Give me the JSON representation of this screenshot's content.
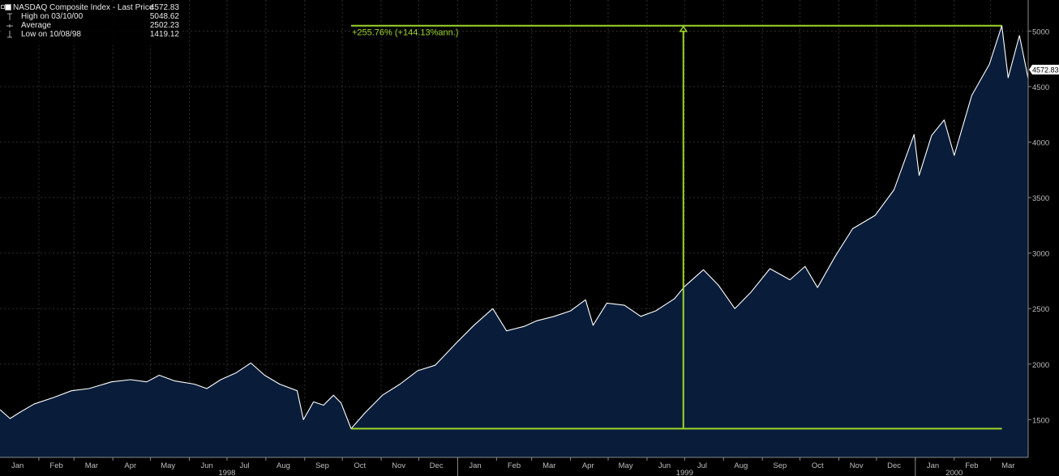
{
  "legend": {
    "series_label": "NASDAQ Composite Index - Last Price",
    "series_value": "4572.83",
    "high_label": "High on 03/10/00",
    "high_value": "5048.62",
    "average_label": "Average",
    "average_value": "2502.23",
    "low_label": "Low on 10/08/98",
    "low_value": "1419.12"
  },
  "annotation": {
    "text": "+255.76% (+144.13%ann.)"
  },
  "last_price_tag": "4572.83",
  "colors": {
    "background": "#000000",
    "area_fill": "#091d3a",
    "line": "#ffffff",
    "annotation": "#9dd62a",
    "grid": "#2e2e2e",
    "axis_text": "#bdbdbd"
  },
  "chart_data": {
    "type": "area",
    "title": "",
    "xlabel": "",
    "ylabel": "",
    "y_axis_side": "right",
    "ylim": [
      1160,
      5280
    ],
    "yticks": [
      1500,
      2000,
      2500,
      3000,
      3500,
      4000,
      4500,
      5000
    ],
    "grid": true,
    "x_start": "1998-01-01",
    "x_end": "2000-03-31",
    "month_ticks": [
      "Jan",
      "Feb",
      "Mar",
      "Apr",
      "May",
      "Jun",
      "Jul",
      "Aug",
      "Sep",
      "Oct",
      "Nov",
      "Dec",
      "Jan",
      "Feb",
      "Mar",
      "Apr",
      "May",
      "Jun",
      "Jul",
      "Aug",
      "Sep",
      "Oct",
      "Nov",
      "Dec",
      "Jan",
      "Feb",
      "Mar"
    ],
    "year_labels": [
      {
        "label": "1998",
        "month_index": 6
      },
      {
        "label": "1999",
        "month_index": 18
      },
      {
        "label": "2000",
        "month_index": 25
      }
    ],
    "series": [
      {
        "name": "NASDAQ Composite Index - Last Price",
        "points": [
          [
            "1998-01-01",
            1590
          ],
          [
            "1998-01-09",
            1510
          ],
          [
            "1998-01-16",
            1560
          ],
          [
            "1998-01-28",
            1640
          ],
          [
            "1998-02-13",
            1700
          ],
          [
            "1998-02-27",
            1760
          ],
          [
            "1998-03-13",
            1780
          ],
          [
            "1998-03-31",
            1840
          ],
          [
            "1998-04-15",
            1860
          ],
          [
            "1998-04-28",
            1840
          ],
          [
            "1998-05-08",
            1900
          ],
          [
            "1998-05-20",
            1850
          ],
          [
            "1998-06-05",
            1820
          ],
          [
            "1998-06-15",
            1780
          ],
          [
            "1998-06-26",
            1860
          ],
          [
            "1998-07-08",
            1920
          ],
          [
            "1998-07-20",
            2010
          ],
          [
            "1998-07-31",
            1900
          ],
          [
            "1998-08-12",
            1820
          ],
          [
            "1998-08-26",
            1760
          ],
          [
            "1998-08-31",
            1500
          ],
          [
            "1998-09-08",
            1660
          ],
          [
            "1998-09-16",
            1630
          ],
          [
            "1998-09-24",
            1720
          ],
          [
            "1998-09-30",
            1650
          ],
          [
            "1998-10-08",
            1419.12
          ],
          [
            "1998-10-19",
            1560
          ],
          [
            "1998-11-02",
            1720
          ],
          [
            "1998-11-16",
            1820
          ],
          [
            "1998-11-30",
            1940
          ],
          [
            "1998-12-14",
            1990
          ],
          [
            "1998-12-31",
            2192
          ],
          [
            "1999-01-14",
            2350
          ],
          [
            "1999-01-29",
            2500
          ],
          [
            "1999-02-09",
            2300
          ],
          [
            "1999-02-23",
            2340
          ],
          [
            "1999-03-05",
            2390
          ],
          [
            "1999-03-19",
            2430
          ],
          [
            "1999-04-01",
            2480
          ],
          [
            "1999-04-13",
            2580
          ],
          [
            "1999-04-19",
            2350
          ],
          [
            "1999-04-30",
            2550
          ],
          [
            "1999-05-14",
            2530
          ],
          [
            "1999-05-27",
            2430
          ],
          [
            "1999-06-08",
            2480
          ],
          [
            "1999-06-23",
            2590
          ],
          [
            "1999-07-01",
            2700
          ],
          [
            "1999-07-16",
            2850
          ],
          [
            "1999-07-28",
            2710
          ],
          [
            "1999-08-10",
            2500
          ],
          [
            "1999-08-23",
            2650
          ],
          [
            "1999-09-07",
            2860
          ],
          [
            "1999-09-23",
            2760
          ],
          [
            "1999-10-05",
            2880
          ],
          [
            "1999-10-15",
            2690
          ],
          [
            "1999-10-29",
            2970
          ],
          [
            "1999-11-12",
            3220
          ],
          [
            "1999-11-30",
            3340
          ],
          [
            "1999-12-15",
            3570
          ],
          [
            "1999-12-31",
            4069
          ],
          [
            "2000-01-04",
            3700
          ],
          [
            "2000-01-14",
            4060
          ],
          [
            "2000-01-24",
            4200
          ],
          [
            "2000-02-01",
            3880
          ],
          [
            "2000-02-15",
            4420
          ],
          [
            "2000-02-29",
            4700
          ],
          [
            "2000-03-10",
            5048.62
          ],
          [
            "2000-03-15",
            4580
          ],
          [
            "2000-03-24",
            4960
          ],
          [
            "2000-03-31",
            4572.83
          ]
        ]
      }
    ],
    "annotations": {
      "high_line": {
        "value": 5048.62,
        "from": "1998-10-08",
        "to": "2000-03-10"
      },
      "low_line": {
        "value": 1419.12,
        "from": "1998-10-08",
        "to": "2000-03-10"
      },
      "arrow": {
        "date": "1999-06-30",
        "from_value": 1419.12,
        "to_value": 5048.62
      }
    }
  }
}
